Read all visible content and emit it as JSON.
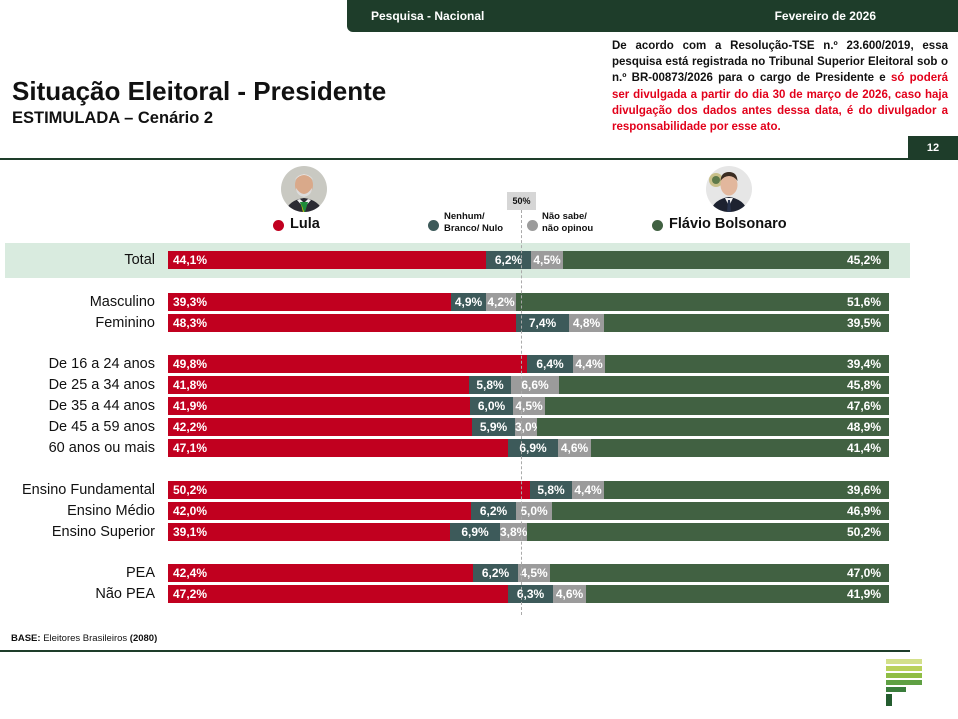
{
  "header": {
    "survey_label": "Pesquisa - Nacional",
    "date_label": "Fevereiro de 2026",
    "page_number": "12"
  },
  "notice": {
    "text_black": "De acordo com a Resolução-TSE n.º 23.600/2019, essa pesquisa está registrada no Tribunal Superior Eleitoral sob o n.º BR-00873/2026 para o cargo de Presidente e ",
    "text_red": "só poderá ser divulgada a partir do dia 30 de março de 2026, caso haja divulgação dos dados antes dessa data, é do divulgador a responsabilidade por esse ato."
  },
  "title": "Situação Eleitoral - Presidente",
  "subtitle": "ESTIMULADA – Cenário 2",
  "legend": {
    "lula": "Lula",
    "nenhum_line1": "Nenhum/",
    "nenhum_line2": "Branco/ Nulo",
    "naosabe_line1": "Não sabe/",
    "naosabe_line2": "não opinou",
    "flavio": "Flávio Bolsonaro"
  },
  "midline_label": "50%",
  "footer": {
    "base_label": "BASE:",
    "base_text": " Eleitores Brasileiros ",
    "base_count": "(2080)"
  },
  "colors": {
    "lula": "#c1001f",
    "nenhum": "#3d5a5a",
    "naosabe": "#9b9b9b",
    "flavio": "#416142",
    "brand_dark": "#1e3d2a",
    "notice_red": "#e2001a"
  },
  "chart_data": {
    "type": "bar",
    "orientation": "horizontal-stacked-100",
    "series": [
      {
        "name": "Lula",
        "key": "lula"
      },
      {
        "name": "Nenhum/ Branco/ Nulo",
        "key": "nenhum"
      },
      {
        "name": "Não sabe/ não opinou",
        "key": "naosabe"
      },
      {
        "name": "Flávio Bolsonaro",
        "key": "flavio"
      }
    ],
    "reference_line": 50,
    "rows": [
      {
        "category": "Total",
        "highlight": true,
        "lula": 44.1,
        "nenhum": 6.2,
        "naosabe": 4.5,
        "flavio": 45.2,
        "labels": {
          "lula": "44,1%",
          "nenhum": "6,2%",
          "naosabe": "4,5%",
          "flavio": "45,2%"
        }
      },
      {
        "category": "Masculino",
        "lula": 39.3,
        "nenhum": 4.9,
        "naosabe": 4.2,
        "flavio": 51.6,
        "labels": {
          "lula": "39,3%",
          "nenhum": "4,9%",
          "naosabe": "4,2%",
          "flavio": "51,6%"
        }
      },
      {
        "category": "Feminino",
        "lula": 48.3,
        "nenhum": 7.4,
        "naosabe": 4.8,
        "flavio": 39.5,
        "labels": {
          "lula": "48,3%",
          "nenhum": "7,4%",
          "naosabe": "4,8%",
          "flavio": "39,5%"
        }
      },
      {
        "category": "De 16 a 24 anos",
        "lula": 49.8,
        "nenhum": 6.4,
        "naosabe": 4.4,
        "flavio": 39.4,
        "labels": {
          "lula": "49,8%",
          "nenhum": "6,4%",
          "naosabe": "4,4%",
          "flavio": "39,4%"
        }
      },
      {
        "category": "De 25 a 34 anos",
        "lula": 41.8,
        "nenhum": 5.8,
        "naosabe": 6.6,
        "flavio": 45.8,
        "labels": {
          "lula": "41,8%",
          "nenhum": "5,8%",
          "naosabe": "6,6%",
          "flavio": "45,8%"
        }
      },
      {
        "category": "De 35 a 44 anos",
        "lula": 41.9,
        "nenhum": 6.0,
        "naosabe": 4.5,
        "flavio": 47.6,
        "labels": {
          "lula": "41,9%",
          "nenhum": "6,0%",
          "naosabe": "4,5%",
          "flavio": "47,6%"
        }
      },
      {
        "category": "De 45 a 59 anos",
        "lula": 42.2,
        "nenhum": 5.9,
        "naosabe": 3.0,
        "flavio": 48.9,
        "labels": {
          "lula": "42,2%",
          "nenhum": "5,9%",
          "naosabe": "3,0%",
          "flavio": "48,9%"
        }
      },
      {
        "category": "60 anos ou mais",
        "lula": 47.1,
        "nenhum": 6.9,
        "naosabe": 4.6,
        "flavio": 41.4,
        "labels": {
          "lula": "47,1%",
          "nenhum": "6,9%",
          "naosabe": "4,6%",
          "flavio": "41,4%"
        }
      },
      {
        "category": "Ensino Fundamental",
        "lula": 50.2,
        "nenhum": 5.8,
        "naosabe": 4.4,
        "flavio": 39.6,
        "labels": {
          "lula": "50,2%",
          "nenhum": "5,8%",
          "naosabe": "4,4%",
          "flavio": "39,6%"
        }
      },
      {
        "category": "Ensino Médio",
        "lula": 42.0,
        "nenhum": 6.2,
        "naosabe": 5.0,
        "flavio": 46.9,
        "labels": {
          "lula": "42,0%",
          "nenhum": "6,2%",
          "naosabe": "5,0%",
          "flavio": "46,9%"
        }
      },
      {
        "category": "Ensino Superior",
        "lula": 39.1,
        "nenhum": 6.9,
        "naosabe": 3.8,
        "flavio": 50.2,
        "labels": {
          "lula": "39,1%",
          "nenhum": "6,9%",
          "naosabe": "3,8%",
          "flavio": "50,2%"
        }
      },
      {
        "category": "PEA",
        "lula": 42.4,
        "nenhum": 6.2,
        "naosabe": 4.5,
        "flavio": 47.0,
        "labels": {
          "lula": "42,4%",
          "nenhum": "6,2%",
          "naosabe": "4,5%",
          "flavio": "47,0%"
        }
      },
      {
        "category": "Não PEA",
        "lula": 47.2,
        "nenhum": 6.3,
        "naosabe": 4.6,
        "flavio": 41.9,
        "labels": {
          "lula": "47,2%",
          "nenhum": "6,3%",
          "naosabe": "4,6%",
          "flavio": "41,9%"
        }
      }
    ]
  }
}
